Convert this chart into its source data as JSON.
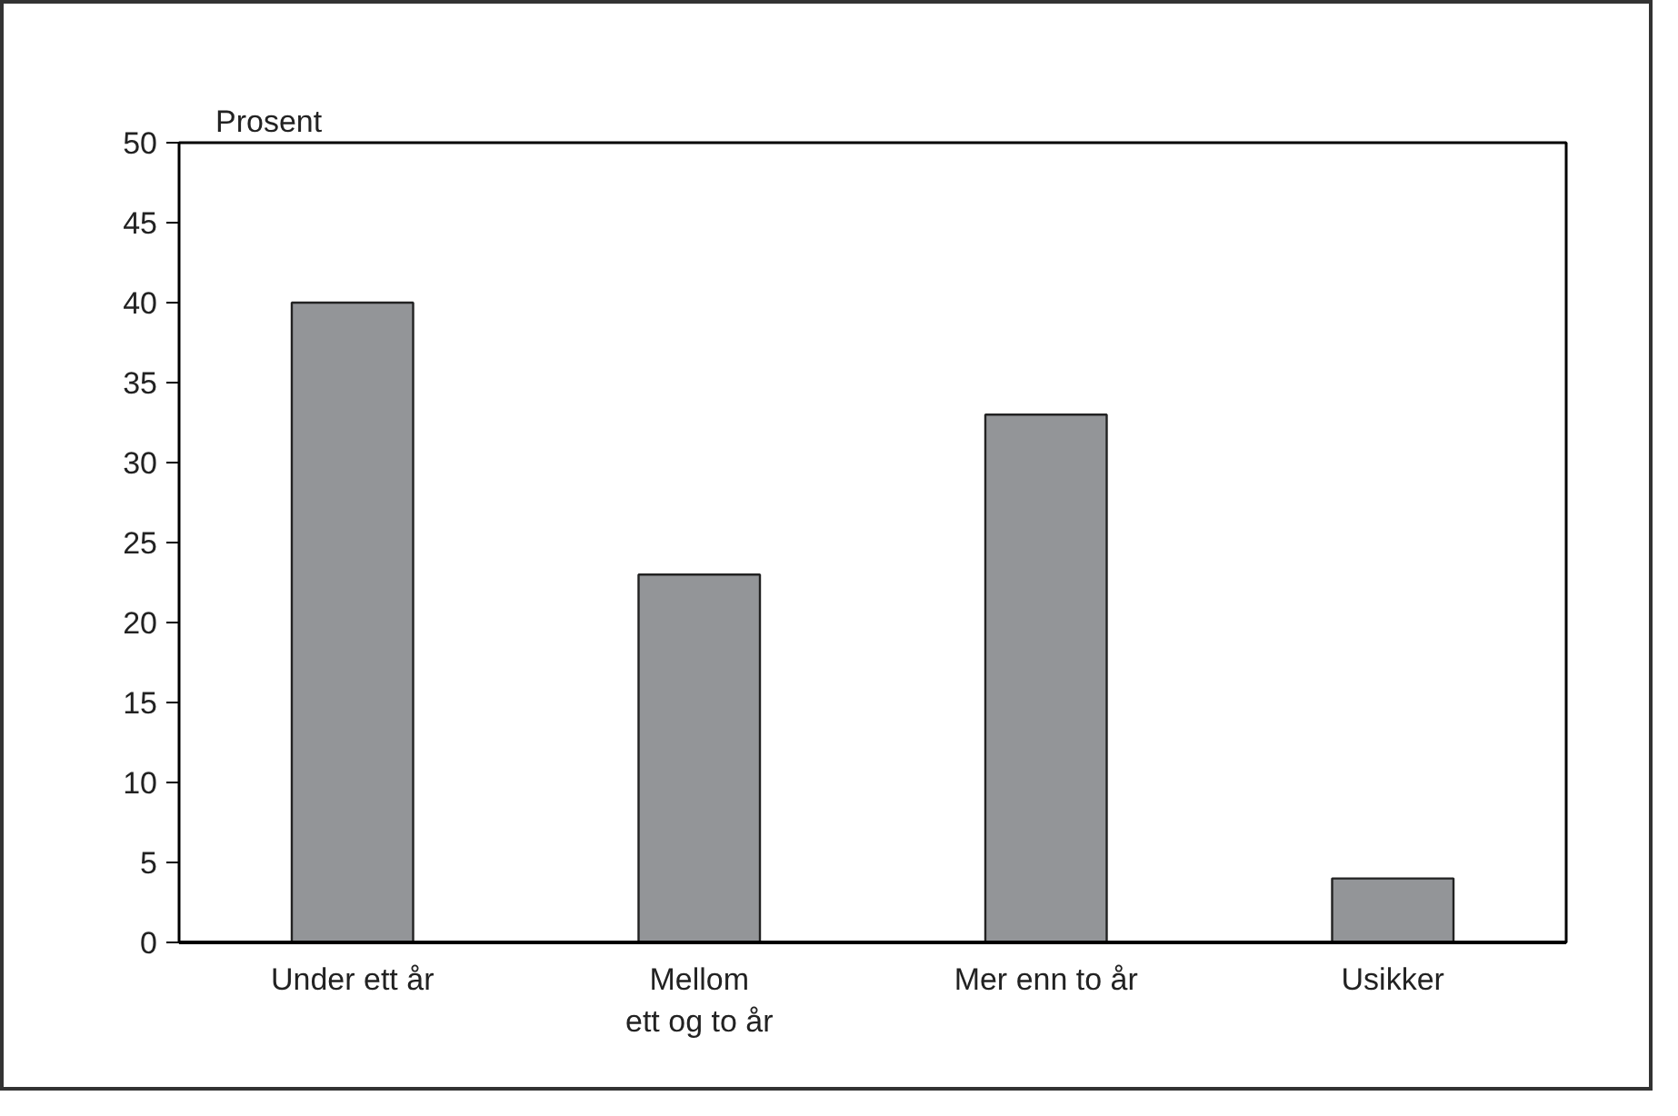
{
  "chart_data": {
    "type": "bar",
    "ylabel": "Prosent",
    "categories": [
      "Under ett år",
      "Mellom ett og to år",
      "Mer enn to år",
      "Usikker"
    ],
    "values": [
      40,
      23,
      33,
      4
    ],
    "color": "#939598",
    "ylim": [
      0,
      50
    ],
    "yticks": [
      0,
      5,
      10,
      15,
      20,
      25,
      30,
      35,
      40,
      45,
      50
    ],
    "grid": false
  }
}
